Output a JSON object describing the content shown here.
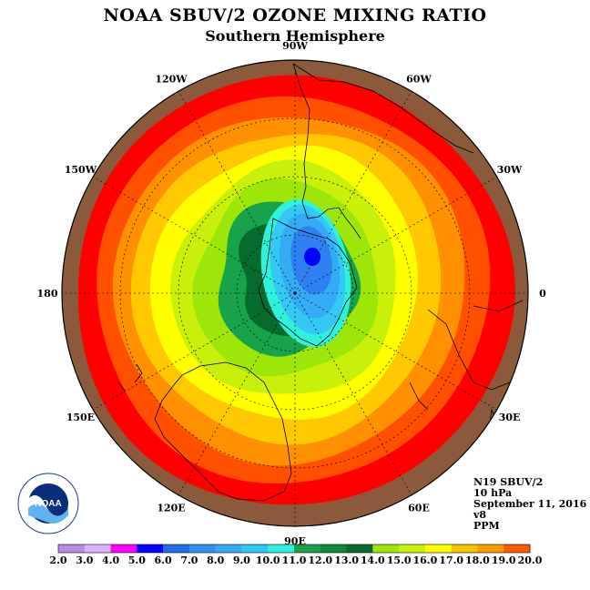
{
  "header": {
    "title": "NOAA SBUV/2 OZONE MIXING RATIO",
    "subtitle": "Southern Hemisphere"
  },
  "longitude_labels": [
    {
      "text": "90W",
      "lon": -90
    },
    {
      "text": "60W",
      "lon": -60
    },
    {
      "text": "30W",
      "lon": -30
    },
    {
      "text": "0",
      "lon": 0
    },
    {
      "text": "30E",
      "lon": 30
    },
    {
      "text": "60E",
      "lon": 60
    },
    {
      "text": "90E",
      "lon": 90
    },
    {
      "text": "120E",
      "lon": 120
    },
    {
      "text": "150E",
      "lon": 150
    },
    {
      "text": "180",
      "lon": 180
    },
    {
      "text": "150W",
      "lon": -150
    },
    {
      "text": "120W",
      "lon": -120
    }
  ],
  "info": {
    "satellite": "N19 SBUV/2",
    "level": "10 hPa",
    "date": "September 11, 2016",
    "version": "v8",
    "units": "PPM"
  },
  "colorbar": {
    "ticks": [
      "2.0",
      "3.0",
      "4.0",
      "5.0",
      "6.0",
      "7.0",
      "8.0",
      "9.0",
      "10.0",
      "11.0",
      "12.0",
      "13.0",
      "14.0",
      "15.0",
      "16.0",
      "17.0",
      "18.0",
      "19.0",
      "20.0"
    ],
    "colors": [
      "#b98ae6",
      "#d9b3ff",
      "#ff00ff",
      "#0000ff",
      "#1e6fe6",
      "#2f92f2",
      "#35aaf5",
      "#2fc8f2",
      "#2ff2dc",
      "#18a24a",
      "#0a8a3a",
      "#086b2e",
      "#9ee60a",
      "#c8f00a",
      "#ffff00",
      "#f5c300",
      "#ff9a00",
      "#ff5a00",
      "#ff0000",
      "#7b5a3c"
    ]
  },
  "map_levels": {
    "values": [
      20,
      19,
      18,
      17,
      16,
      15,
      14,
      13,
      12,
      11
    ],
    "colors": [
      "#8b5a3c",
      "#ff0000",
      "#ff5000",
      "#ff9000",
      "#ffc800",
      "#ffff00",
      "#c8f00a",
      "#9ee60a",
      "#18a24a",
      "#086b2e"
    ],
    "core": [
      {
        "value": 9,
        "color": "#2ff2dc"
      },
      {
        "value": 8,
        "color": "#35c8f5"
      },
      {
        "value": 7,
        "color": "#35aaf5"
      },
      {
        "value": 6,
        "color": "#2f80f0"
      },
      {
        "value": 5,
        "color": "#0000ff"
      }
    ]
  },
  "logo": {
    "text": "NOAA"
  }
}
